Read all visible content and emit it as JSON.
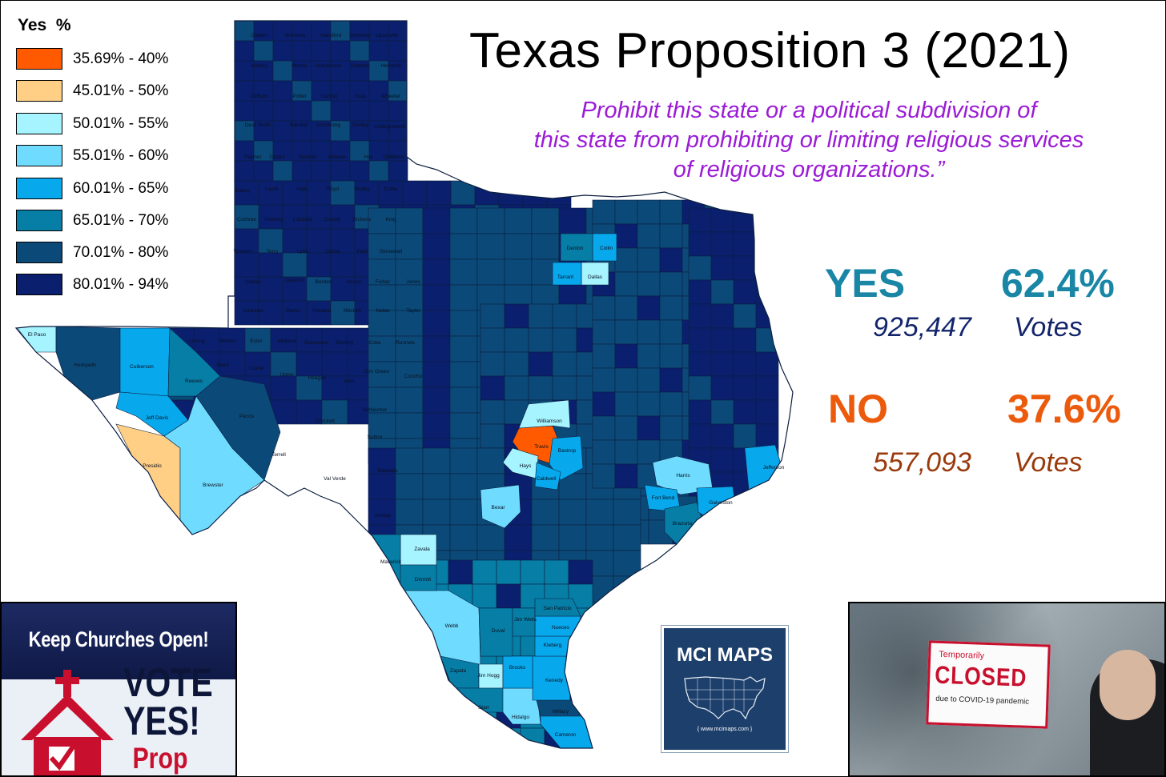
{
  "title": "Texas Proposition 3 (2021)",
  "subtitle_lines": [
    "Prohibit this state or a political subdivision of",
    "this state from prohibiting or limiting religious services",
    "of religious organizations.”"
  ],
  "legend": {
    "title": "Yes  %",
    "items": [
      {
        "label": "35.69% - 40%",
        "color": "#ff5a00"
      },
      {
        "label": "45.01% - 50%",
        "color": "#ffcf85"
      },
      {
        "label": "50.01% - 55%",
        "color": "#a6f4ff"
      },
      {
        "label": "55.01% - 60%",
        "color": "#6fdcff"
      },
      {
        "label": "60.01% - 65%",
        "color": "#08a8ec"
      },
      {
        "label": "65.01% - 70%",
        "color": "#067ea6"
      },
      {
        "label": "70.01% - 80%",
        "color": "#0b4a78"
      },
      {
        "label": "80.01% - 94%",
        "color": "#0a1f6e"
      }
    ]
  },
  "results": {
    "yes": {
      "label": "YES",
      "pct": "62.4%",
      "votes": "925,447",
      "votes_word": "Votes",
      "color": "#1a86a6",
      "votes_color": "#14256b"
    },
    "no": {
      "label": "NO",
      "pct": "37.6%",
      "votes": "557,093",
      "votes_word": "Votes",
      "color": "#ec5a0c",
      "votes_color": "#9a3a0c"
    }
  },
  "counties": {
    "Dallam": 8,
    "Sherman": 8,
    "Hansford": 8,
    "Ochiltree": 8,
    "Lipscomb": 8,
    "Hartley": 8,
    "Moore": 8,
    "Hutchinson": 8,
    "Roberts": 8,
    "Hemphill": 8,
    "Oldham": 8,
    "Potter": 7,
    "Carson": 8,
    "Gray": 8,
    "Wheeler": 8,
    "Deaf Smith": 8,
    "Randall": 7,
    "Armstrong": 8,
    "Donley": 8,
    "Collingsworth": 8,
    "Parmer": 8,
    "Castro": 8,
    "Swisher": 8,
    "Briscoe": 8,
    "Hall": 8,
    "Childress": 8,
    "Bailey": 8,
    "Lamb": 8,
    "Hale": 8,
    "Floyd": 8,
    "Motley": 8,
    "Cottle": 8,
    "Cochran": 8,
    "Hockley": 8,
    "Lubbock": 7,
    "Crosby": 7,
    "Dickens": 8,
    "King": 8,
    "Yoakum": 8,
    "Terry": 8,
    "Lynn": 8,
    "Garza": 8,
    "Kent": 8,
    "Stonewall": 8,
    "Gaines": 8,
    "Dawson": 8,
    "Borden": 8,
    "Scurry": 8,
    "Fisher": 8,
    "Jones": 8,
    "Andrews": 8,
    "Martin": 8,
    "Howard": 7,
    "Mitchell": 8,
    "Nolan": 8,
    "Taylor": 7,
    "Loving": 7,
    "Winkler": 8,
    "Ector": 7,
    "Midland": 8,
    "Glasscock": 8,
    "Sterling": 8,
    "Coke": 8,
    "Runnels": 8,
    "Ward": 7,
    "Crane": 8,
    "Upton": 8,
    "Reagan": 8,
    "Irion": 8,
    "Tom Green": 7,
    "Concho": 8,
    "El Paso": 3,
    "Hudspeth": 7,
    "Culberson": 5,
    "Reeves": 6,
    "Pecos": 7,
    "Jeff Davis": 5,
    "Presidio": 2,
    "Brewster": 4,
    "Terrell": 8,
    "Crockett": 7,
    "Schleicher": 8,
    "Sutton": 8,
    "Val Verde": 7,
    "Edwards": 8,
    "Kinney": 8,
    "Maverick": 6,
    "Zavala": 3,
    "Dimmit": 6,
    "Webb": 4,
    "Zapata": 6,
    "Jim Hogg": 3,
    "Starr": 6,
    "Hidalgo": 4,
    "Cameron": 5,
    "Willacy": 7,
    "Kenedy": 5,
    "Brooks": 5,
    "Duval": 6,
    "Jim Wells": 6,
    "Kleberg": 5,
    "Nueces": 5,
    "San Patricio": 6,
    "Travis": 1,
    "Hays": 3,
    "Williamson": 3,
    "Bexar": 4,
    "Dallas": 3,
    "Tarrant": 5,
    "Collin": 5,
    "Denton": 6,
    "Harris": 4,
    "Fort Bend": 5,
    "Brazoria": 6,
    "Galveston": 5,
    "Jefferson": 5,
    "Caldwell": 5,
    "Bastrop": 5
  }
}
